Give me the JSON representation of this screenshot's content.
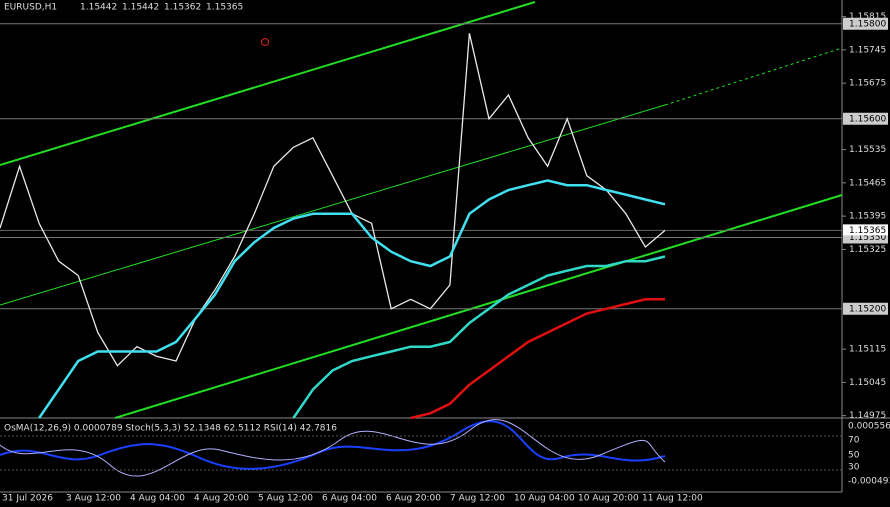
{
  "chart_data": {
    "type": "line",
    "title": "EURUSD,H1",
    "header_values": [
      "1.15442",
      "1.15442",
      "1.15362",
      "1.15365"
    ],
    "ylim": [
      1.1497,
      1.1585
    ],
    "yticks": [
      1.15815,
      1.15745,
      1.15675,
      1.15535,
      1.15465,
      1.15395,
      1.15325,
      1.15115,
      1.15045,
      1.14975
    ],
    "levels": [
      {
        "value": 1.158,
        "label": "1.15800"
      },
      {
        "value": 1.156,
        "label": "1.15600"
      },
      {
        "value": 1.1535,
        "label": "1.15350"
      },
      {
        "value": 1.152,
        "label": "1.15200"
      }
    ],
    "last_price": {
      "value": 1.15365,
      "label": "1.15365"
    },
    "time_labels": [
      "31 Jul 2026",
      "3 Aug 12:00",
      "4 Aug 04:00",
      "4 Aug 20:00",
      "5 Aug 12:00",
      "6 Aug 04:00",
      "6 Aug 20:00",
      "7 Aug 12:00",
      "10 Aug 04:00",
      "10 Aug 20:00",
      "11 Aug 12:00"
    ],
    "series": [
      {
        "color": "#e8e8e8",
        "values": [
          1.1537,
          1.155,
          1.1538,
          1.153,
          1.1527,
          1.1515,
          1.1508,
          1.1512,
          1.151,
          1.1509,
          1.1518,
          1.1524,
          1.1531,
          1.154,
          1.155,
          1.1554,
          1.1556,
          1.1548,
          1.154,
          1.1538,
          1.152,
          1.1522,
          1.152,
          1.1525,
          1.1578,
          1.156,
          1.1565,
          1.1556,
          1.155,
          1.156,
          1.1548,
          1.1545,
          1.154,
          1.1533,
          1.15365
        ]
      },
      {
        "color": "#40e0f0",
        "values": [
          null,
          null,
          1.1497,
          1.1503,
          1.1509,
          1.1511,
          1.1511,
          1.1511,
          1.1511,
          1.1513,
          1.1518,
          1.1523,
          1.153,
          1.1534,
          1.1537,
          1.1539,
          1.154,
          1.154,
          1.154,
          1.1535,
          1.1532,
          1.153,
          1.1529,
          1.1531,
          1.154,
          1.1543,
          1.1545,
          1.1546,
          1.1547,
          1.1546,
          1.1546,
          1.1545,
          1.1544,
          1.1543,
          1.1542
        ]
      },
      {
        "color": "#30d8c8",
        "values": [
          null,
          null,
          null,
          null,
          null,
          null,
          null,
          null,
          null,
          null,
          null,
          null,
          null,
          null,
          null,
          1.1497,
          1.1503,
          1.1507,
          1.1509,
          1.151,
          1.1511,
          1.1512,
          1.1512,
          1.1513,
          1.1517,
          1.152,
          1.1523,
          1.1525,
          1.1527,
          1.1528,
          1.1529,
          1.1529,
          1.153,
          1.153,
          1.1531
        ]
      },
      {
        "color": "#e01010",
        "values": [
          null,
          null,
          null,
          null,
          null,
          null,
          null,
          null,
          null,
          null,
          null,
          null,
          null,
          null,
          null,
          null,
          null,
          null,
          null,
          null,
          null,
          1.1497,
          1.1498,
          1.15,
          1.1504,
          1.1507,
          1.151,
          1.1513,
          1.1515,
          1.1517,
          1.1519,
          1.152,
          1.1521,
          1.1522,
          1.1522
        ]
      }
    ],
    "indicator_header": "OsMA(12,26,9) 0.0000789 Stoch(5,3,3) 52.1348 62.5112 RSI(14) 42.7816",
    "indicator_ticks": [
      "0.000556",
      "70",
      "50",
      "30",
      "-0.000493"
    ]
  }
}
